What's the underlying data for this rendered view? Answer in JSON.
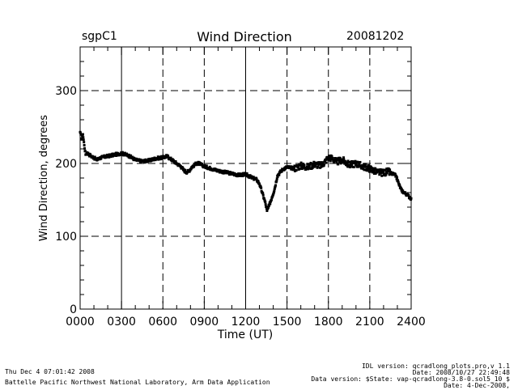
{
  "header": {
    "site": "sgpC1",
    "title": "Wind Direction",
    "date": "20081202"
  },
  "footer": {
    "run_time": "Thu Dec  4 07:01:42 2008",
    "institution": "Battelle Pacific Northwest National Laboratory, Arm Data Application",
    "idl_version": "IDL version: qcradlong_plots.pro,v 1.1",
    "idl_date": "Date: 2008/10/27 22:49:48",
    "data_version": "Data version: $State: vap-qcradlong-3.8-0.sol5_10 $",
    "data_date": "Date: 4-Dec-2008,"
  },
  "chart_data": {
    "type": "scatter",
    "title": "Wind Direction",
    "xlabel": "Time (UT)",
    "ylabel": "Wind Direction, degrees",
    "xlim": [
      0,
      24
    ],
    "ylim": [
      0,
      360
    ],
    "x_ticks": [
      0,
      3,
      6,
      9,
      12,
      15,
      18,
      21,
      24
    ],
    "x_tick_labels": [
      "0000",
      "0300",
      "0600",
      "0900",
      "1200",
      "1500",
      "1800",
      "2100",
      "2400"
    ],
    "y_ticks": [
      0,
      100,
      200,
      300
    ],
    "y_tick_labels": [
      "0",
      "100",
      "200",
      "300"
    ],
    "vertical_lines": [
      {
        "x": 3,
        "style": "solid"
      },
      {
        "x": 6,
        "style": "dashed"
      },
      {
        "x": 9,
        "style": "dashed"
      },
      {
        "x": 12,
        "style": "solid"
      },
      {
        "x": 15,
        "style": "dashed"
      },
      {
        "x": 18,
        "style": "dashed"
      },
      {
        "x": 21,
        "style": "dashed"
      }
    ],
    "horizontal_lines": [
      {
        "y": 100,
        "style": "dashed"
      },
      {
        "y": 200,
        "style": "dashed"
      },
      {
        "y": 300,
        "style": "dashed"
      }
    ],
    "series": [
      {
        "name": "Wind Direction",
        "x": [
          0.0,
          0.1,
          0.2,
          0.3,
          0.4,
          0.5,
          0.6,
          0.8,
          1.0,
          1.2,
          1.5,
          2.0,
          2.5,
          3.0,
          3.5,
          4.0,
          4.5,
          5.0,
          5.5,
          6.0,
          6.3,
          6.5,
          6.8,
          7.0,
          7.3,
          7.5,
          7.7,
          7.9,
          8.1,
          8.3,
          8.5,
          8.7,
          9.0,
          9.5,
          10.0,
          10.5,
          11.0,
          11.5,
          12.0,
          12.5,
          12.8,
          13.0,
          13.2,
          13.4,
          13.55,
          13.7,
          13.9,
          14.1,
          14.3,
          14.5,
          14.7,
          15.0,
          15.5,
          16.0,
          16.5,
          17.0,
          17.5,
          18.0,
          18.3,
          18.6,
          19.0,
          19.5,
          20.0,
          20.5,
          21.0,
          21.5,
          22.0,
          22.3,
          22.6,
          22.9,
          23.1,
          23.3,
          23.5,
          23.7,
          24.0
        ],
        "y": [
          243,
          233,
          240,
          225,
          212,
          215,
          213,
          210,
          208,
          205,
          208,
          210,
          212,
          214,
          211,
          205,
          203,
          204,
          207,
          208,
          210,
          207,
          203,
          200,
          196,
          191,
          188,
          190,
          195,
          198,
          201,
          199,
          196,
          193,
          190,
          188,
          186,
          184,
          185,
          180,
          178,
          172,
          160,
          148,
          135,
          142,
          153,
          165,
          183,
          188,
          192,
          195,
          193,
          197,
          195,
          199,
          197,
          208,
          207,
          202,
          205,
          198,
          200,
          196,
          193,
          188,
          187,
          189,
          186,
          183,
          172,
          163,
          160,
          157,
          152
        ]
      }
    ]
  }
}
